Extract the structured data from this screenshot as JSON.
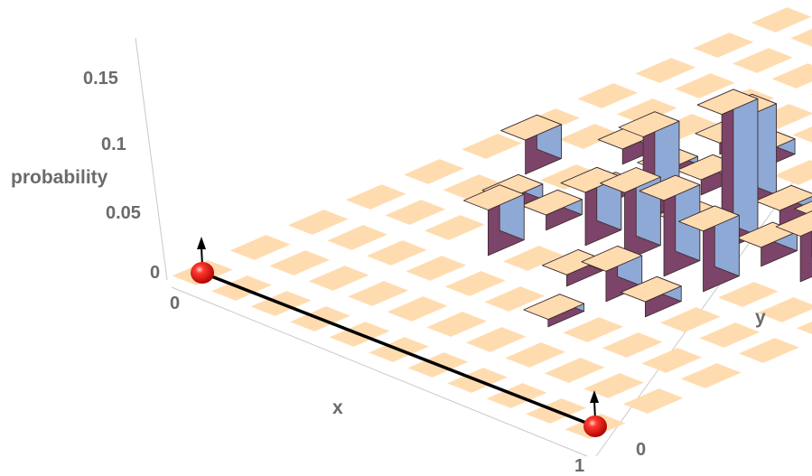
{
  "chart_data": {
    "type": "bar3d",
    "title": "",
    "xlabel": "x",
    "ylabel": "y",
    "zlabel": "probability",
    "x_ticks": [
      "0",
      "1"
    ],
    "y_ticks": [
      "0",
      ""
    ],
    "z_ticks": [
      "0",
      "0.05",
      "0.1",
      "0.15"
    ],
    "zlim": [
      0,
      0.18
    ],
    "grid_size": [
      11,
      11
    ],
    "bar_colors": {
      "front": "#7b4468",
      "side": "#8fa9d6",
      "top": "#ffdcb0",
      "tile": "#ffdcb0",
      "bar_edge": "#3a2a2a"
    },
    "bars": [
      {
        "x": 1,
        "y": 5,
        "z": 0.045
      },
      {
        "x": 2,
        "y": 4,
        "z": 0.02
      },
      {
        "x": 2,
        "y": 6,
        "z": 0.02
      },
      {
        "x": 3,
        "y": 3,
        "z": 0.06
      },
      {
        "x": 3,
        "y": 4,
        "z": 0.02
      },
      {
        "x": 3,
        "y": 5,
        "z": 0.01
      },
      {
        "x": 3,
        "y": 6,
        "z": 0.01
      },
      {
        "x": 3,
        "y": 7,
        "z": 0.015
      },
      {
        "x": 4,
        "y": 4,
        "z": 0.07
      },
      {
        "x": 4,
        "y": 5,
        "z": 0.11
      },
      {
        "x": 4,
        "y": 6,
        "z": 0.02
      },
      {
        "x": 4,
        "y": 7,
        "z": 0.02
      },
      {
        "x": 5,
        "y": 3,
        "z": 0.015
      },
      {
        "x": 5,
        "y": 4,
        "z": 0.09
      },
      {
        "x": 5,
        "y": 5,
        "z": 0.015
      },
      {
        "x": 5,
        "y": 6,
        "z": 0.12
      },
      {
        "x": 6,
        "y": 2,
        "z": 0.01
      },
      {
        "x": 6,
        "y": 3,
        "z": 0.04
      },
      {
        "x": 6,
        "y": 4,
        "z": 0.1
      },
      {
        "x": 6,
        "y": 5,
        "z": 0.18
      },
      {
        "x": 6,
        "y": 6,
        "z": 0.02
      },
      {
        "x": 6,
        "y": 7,
        "z": 0.01
      },
      {
        "x": 6,
        "y": 8,
        "z": 0.015
      },
      {
        "x": 7,
        "y": 3,
        "z": 0.02
      },
      {
        "x": 7,
        "y": 4,
        "z": 0.08
      },
      {
        "x": 7,
        "y": 5,
        "z": 0.025
      },
      {
        "x": 7,
        "y": 6,
        "z": 0.03
      },
      {
        "x": 7,
        "y": 7,
        "z": 0.02
      },
      {
        "x": 7,
        "y": 8,
        "z": 0.01
      },
      {
        "x": 8,
        "y": 5,
        "z": 0.06
      },
      {
        "x": 8,
        "y": 6,
        "z": 0.02
      },
      {
        "x": 8,
        "y": 8,
        "z": 0.06
      },
      {
        "x": 9,
        "y": 6,
        "z": 0.06
      },
      {
        "x": 9,
        "y": 8,
        "z": 0.12
      }
    ],
    "path_markers": [
      {
        "x": 0,
        "y": 0
      },
      {
        "x": 10,
        "y": 0
      }
    ]
  }
}
